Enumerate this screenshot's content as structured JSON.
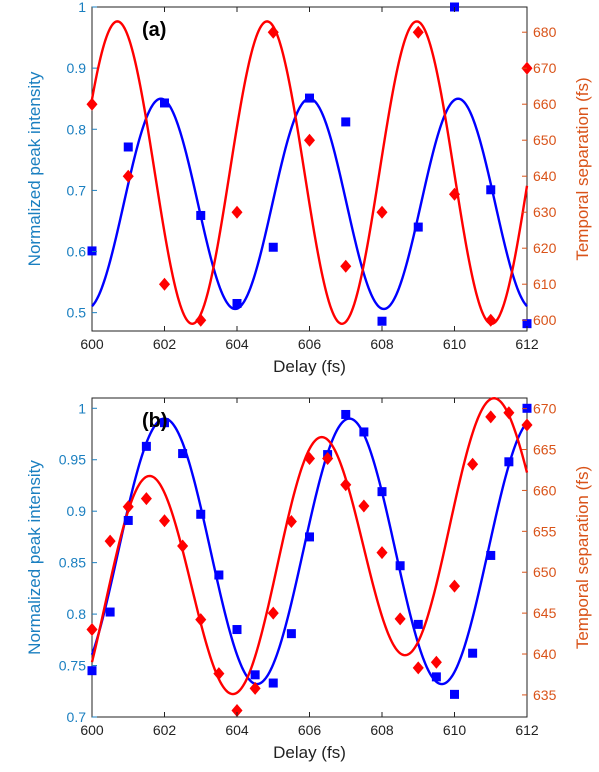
{
  "colors": {
    "blue": "#0000ff",
    "red": "#ff0000",
    "left_axis": "#1a7fc0",
    "right_axis": "#d95319"
  },
  "chart_data": [
    {
      "type": "scatter",
      "panel_label": "(a)",
      "xlabel": "Delay (fs)",
      "ylabel": "Normalized peak intensity",
      "y2label": "Temporal separation (fs)",
      "xlim": [
        600,
        612
      ],
      "ylim": [
        0.47,
        1.0
      ],
      "y2lim": [
        597,
        687
      ],
      "xticks": [
        600,
        602,
        604,
        606,
        608,
        610,
        612
      ],
      "yticks": [
        0.5,
        0.6,
        0.7,
        0.8,
        0.9,
        1
      ],
      "y2ticks": [
        600,
        610,
        620,
        630,
        640,
        650,
        660,
        670,
        680
      ],
      "series": [
        {
          "axis": "left",
          "color": "#0000ff",
          "marker": "square",
          "x": [
            600,
            601,
            602,
            603,
            604,
            605,
            606,
            607,
            608,
            609,
            610,
            611,
            612
          ],
          "y": [
            0.601,
            0.771,
            0.843,
            0.659,
            0.515,
            0.607,
            0.851,
            0.812,
            0.486,
            0.64,
            1.0,
            0.701,
            0.482
          ],
          "fit": {
            "mean": 0.678,
            "amp": 0.172,
            "period": 4.1,
            "phase": 601.9
          }
        },
        {
          "axis": "right",
          "color": "#ff0000",
          "marker": "diamond",
          "x": [
            600,
            601,
            602,
            603,
            604,
            605,
            606,
            607,
            608,
            609,
            610,
            611,
            612
          ],
          "y": [
            660,
            640,
            610,
            600,
            630,
            680,
            650,
            615,
            630,
            680,
            635,
            600,
            670
          ],
          "fit": {
            "mean": 641,
            "amp": 42,
            "period": 4.13,
            "phase": 600.7
          }
        }
      ]
    },
    {
      "type": "scatter",
      "panel_label": "(b)",
      "xlabel": "Delay (fs)",
      "ylabel": "Normalized peak intensity",
      "y2label": "Temporal separation (fs)",
      "xlim": [
        600,
        612
      ],
      "ylim": [
        0.7,
        1.01
      ],
      "y2lim": [
        632.3,
        671.3
      ],
      "xticks": [
        600,
        602,
        604,
        606,
        608,
        610,
        612
      ],
      "yticks": [
        0.7,
        0.75,
        0.8,
        0.85,
        0.9,
        0.95,
        1
      ],
      "y2ticks": [
        635,
        640,
        645,
        650,
        655,
        660,
        665,
        670
      ],
      "series": [
        {
          "axis": "left",
          "color": "#0000ff",
          "marker": "square",
          "x": [
            600,
            600.5,
            601,
            601.5,
            602,
            602.5,
            603,
            603.5,
            604,
            604.5,
            605,
            605.5,
            606,
            606.5,
            607,
            607.5,
            608,
            608.5,
            609,
            609.5,
            610,
            610.5,
            611,
            611.5,
            612
          ],
          "y": [
            0.745,
            0.802,
            0.891,
            0.963,
            0.986,
            0.956,
            0.897,
            0.838,
            0.785,
            0.741,
            0.733,
            0.781,
            0.875,
            0.955,
            0.994,
            0.977,
            0.919,
            0.847,
            0.79,
            0.739,
            0.722,
            0.762,
            0.857,
            0.948,
            1.0
          ],
          "fit": {
            "mean": 0.861,
            "amp": 0.129,
            "period": 5.1,
            "phase": 602.0
          }
        },
        {
          "axis": "right",
          "color": "#ff0000",
          "marker": "diamond",
          "x": [
            600,
            600.5,
            601,
            601.5,
            602,
            602.5,
            603,
            603.5,
            604,
            604.5,
            605,
            605.5,
            606,
            606.5,
            607,
            607.5,
            608,
            608.5,
            609,
            609.5,
            610,
            610.5,
            611,
            611.5,
            612
          ],
          "y": [
            643,
            653.8,
            658,
            659,
            656.3,
            653.2,
            644.2,
            637.6,
            633.1,
            635.8,
            645,
            656.2,
            663.9,
            663.9,
            660.7,
            658.1,
            652.4,
            644.3,
            638.3,
            639,
            648.3,
            663.2,
            669,
            669.5,
            668
          ],
          "fit": {
            "mean": 651.7,
            "amp": 14.5,
            "period": 4.75,
            "phase": 601.55,
            "drift_per_fs": 1.0,
            "drift_ref": 606.0
          }
        }
      ]
    }
  ]
}
